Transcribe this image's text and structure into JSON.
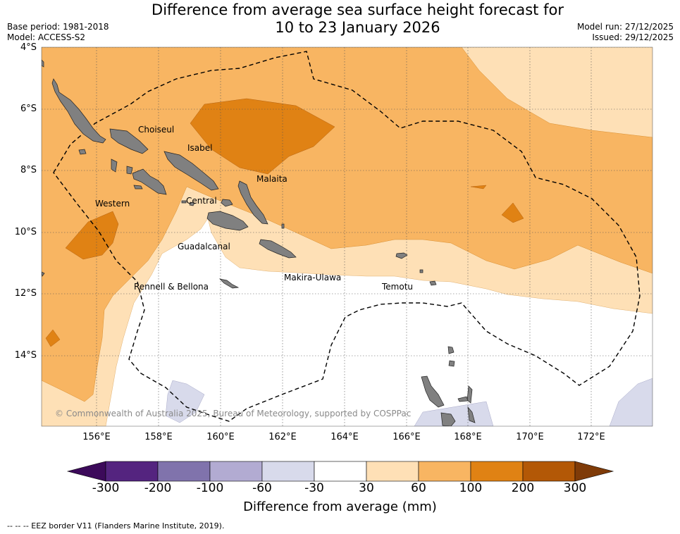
{
  "header": {
    "title_line1": "Difference from average sea surface height forecast for",
    "title_line2": "10 to 23 January 2026",
    "base_period": "Base period: 1981-2018",
    "model": "Model: ACCESS-S2",
    "model_run": "Model run: 27/12/2025",
    "issued": "Issued: 29/12/2025"
  },
  "map": {
    "lat_labels": [
      "4°S",
      "6°S",
      "8°S",
      "10°S",
      "12°S",
      "14°S"
    ],
    "lon_labels": [
      "156°E",
      "158°E",
      "160°E",
      "162°E",
      "164°E",
      "166°E",
      "168°E",
      "170°E",
      "172°E"
    ],
    "provinces": [
      "Choiseul",
      "Isabel",
      "Malaita",
      "Western",
      "Central",
      "Guadalcanal",
      "Makira-Ulawa",
      "Rennell & Bellona",
      "Temotu"
    ],
    "copyright": "© Commonwealth of Australia 2025, Bureau of Meteorology, supported by COSPPac"
  },
  "colorbar": {
    "ticks": [
      "-300",
      "-200",
      "-100",
      "-60",
      "-30",
      "30",
      "60",
      "100",
      "200",
      "300"
    ],
    "colors": [
      "#3c0a5a",
      "#54247f",
      "#8073ac",
      "#b2abd2",
      "#d8daeb",
      "#ffffff",
      "#fee0b6",
      "#f8b562",
      "#e08214",
      "#b35806",
      "#7f3b08"
    ],
    "title": "Difference from average (mm)"
  },
  "footer": {
    "eez_note": "--  --  -- EEZ border V11 (Flanders Marine Institute, 2019)."
  }
}
